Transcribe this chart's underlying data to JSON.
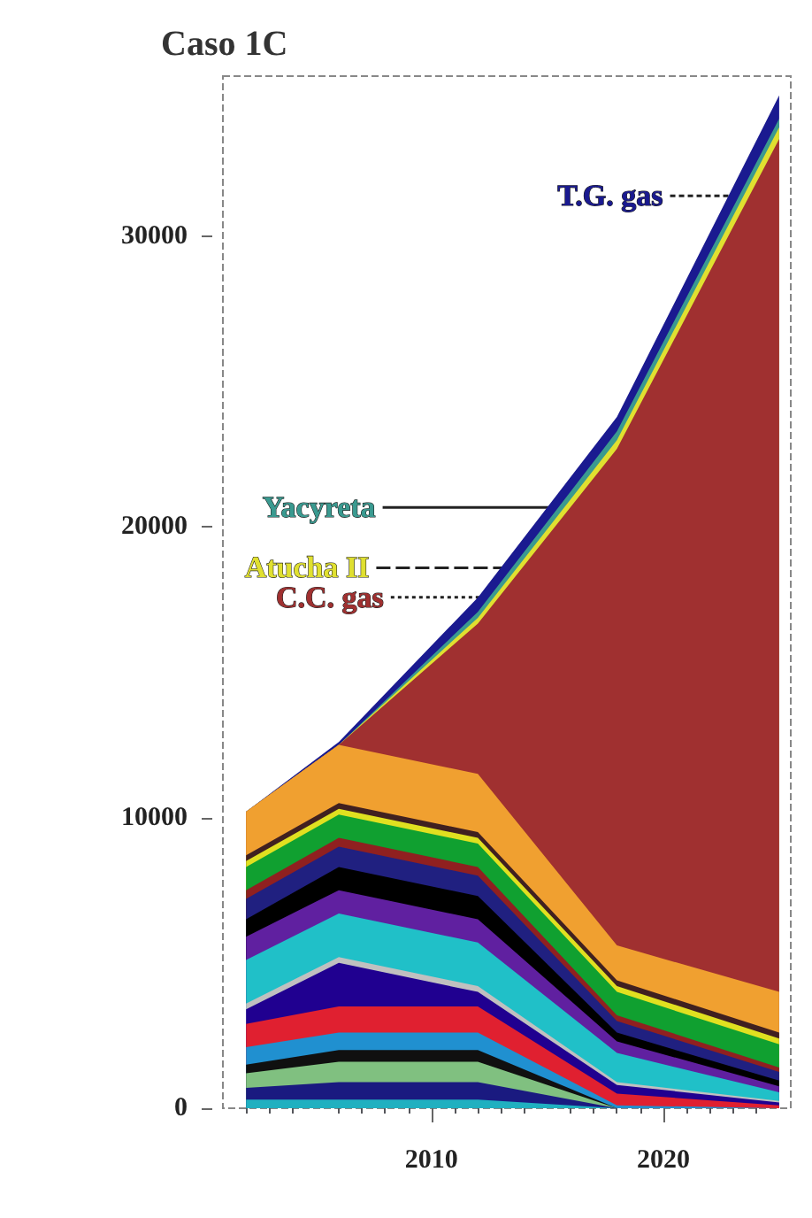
{
  "chart_data": {
    "type": "area",
    "title": "Caso 1C",
    "stacked": true,
    "x": [
      2002,
      2006,
      2012,
      2018,
      2025
    ],
    "xlim": [
      2001,
      2025.5
    ],
    "xticks": [
      2010,
      2020
    ],
    "ylim": [
      0,
      35500
    ],
    "yticks": [
      0,
      10000,
      20000,
      30000
    ],
    "series": [
      {
        "color": "#20b0c0",
        "values": [
          300,
          300,
          300,
          0,
          0
        ]
      },
      {
        "color": "#1a1a80",
        "values": [
          400,
          600,
          600,
          0,
          0
        ]
      },
      {
        "color": "#80c080",
        "values": [
          500,
          700,
          700,
          0,
          0
        ]
      },
      {
        "color": "#101010",
        "values": [
          300,
          400,
          400,
          0,
          0
        ]
      },
      {
        "color": "#2090d0",
        "values": [
          600,
          600,
          600,
          100,
          0
        ]
      },
      {
        "color": "#e02030",
        "values": [
          800,
          900,
          900,
          400,
          100
        ]
      },
      {
        "color": "#200090",
        "values": [
          500,
          1500,
          500,
          300,
          100
        ]
      },
      {
        "color": "#c0c0c0",
        "values": [
          200,
          200,
          200,
          100,
          50
        ]
      },
      {
        "color": "#20c0c8",
        "values": [
          1500,
          1500,
          1500,
          1000,
          300
        ]
      },
      {
        "color": "#6020a0",
        "values": [
          800,
          800,
          800,
          400,
          200
        ]
      },
      {
        "color": "#000000",
        "values": [
          600,
          800,
          800,
          300,
          200
        ]
      },
      {
        "color": "#202080",
        "values": [
          700,
          700,
          700,
          400,
          300
        ]
      },
      {
        "color": "#902020",
        "values": [
          300,
          300,
          300,
          200,
          150
        ]
      },
      {
        "color": "#10a030",
        "values": [
          800,
          800,
          800,
          800,
          800
        ]
      },
      {
        "color": "#e0e020",
        "values": [
          200,
          200,
          200,
          200,
          200
        ]
      },
      {
        "color": "#402020",
        "values": [
          200,
          200,
          200,
          200,
          200
        ]
      },
      {
        "color": "#f0a030",
        "values": [
          1500,
          2000,
          2000,
          1200,
          1400
        ]
      },
      {
        "name": "C.C. gas",
        "color": "#a03030",
        "values": [
          0,
          0,
          5170,
          17080,
          29340
        ]
      },
      {
        "name": "Atucha II",
        "color": "#e0e030",
        "values": [
          0,
          0,
          200,
          300,
          400
        ]
      },
      {
        "name": "Yacyreta",
        "color": "#3a9a90",
        "values": [
          0,
          0,
          200,
          300,
          300
        ]
      },
      {
        "name": "T.G. gas",
        "color": "#1a1a90",
        "values": [
          0,
          100,
          500,
          500,
          800
        ]
      }
    ]
  }
}
